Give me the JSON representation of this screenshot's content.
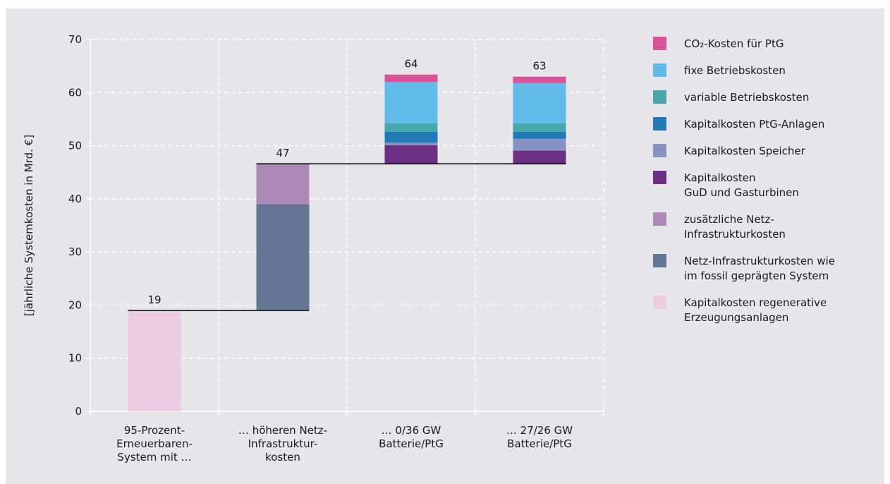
{
  "chart_data": {
    "type": "bar",
    "subtype": "stacked-waterfall",
    "ylabel": "[jährliche Systemkosten in Mrd. €]",
    "ylim": [
      0,
      70
    ],
    "yticks": [
      0,
      10,
      20,
      30,
      40,
      50,
      60,
      70
    ],
    "grid": true,
    "legend_position": "right",
    "categories": [
      [
        "95-Prozent-",
        "Erneuerbaren-",
        "System mit …"
      ],
      [
        "… höheren Netz-",
        "Infrastruktur-",
        "kosten"
      ],
      [
        "… 0/36 GW",
        "Batterie/PtG"
      ],
      [
        "… 27/26 GW",
        "Batterie/PtG"
      ]
    ],
    "totals": [
      "19",
      "47",
      "64",
      "63"
    ],
    "series": [
      {
        "name": [
          "Kapitalkosten regenerative",
          "Erzeugungsanlagen"
        ],
        "color": "#edcce2",
        "values": [
          19,
          0,
          0,
          0
        ]
      },
      {
        "name": [
          "Netz-Infrastrukturkosten wie",
          "im fossil geprägten System"
        ],
        "color": "#637693",
        "values": [
          0,
          20,
          0,
          0
        ]
      },
      {
        "name": [
          "zusätzliche Netz-",
          "Infrastrukturkosten"
        ],
        "color": "#ae88b6",
        "values": [
          0,
          7.6,
          0,
          0
        ]
      },
      {
        "name": [
          "Kapitalkosten",
          "GuD und Gasturbinen"
        ],
        "color": "#6d2f84",
        "values": [
          0,
          0,
          3.5,
          2.5
        ]
      },
      {
        "name": [
          "Kapitalkosten Speicher"
        ],
        "color": "#8592c3",
        "values": [
          0,
          0,
          0.5,
          2.2
        ]
      },
      {
        "name": [
          "Kapitalkosten PtG-Anlagen"
        ],
        "color": "#2179b6",
        "values": [
          0,
          0,
          2.0,
          1.3
        ]
      },
      {
        "name": [
          "variable Betriebskosten"
        ],
        "color": "#46a6aa",
        "values": [
          0,
          0,
          1.6,
          1.6
        ]
      },
      {
        "name": [
          "fixe Betriebskosten"
        ],
        "color": "#62bae8",
        "values": [
          0,
          0,
          7.8,
          7.6
        ]
      },
      {
        "name": [
          "CO₂-Kosten für PtG"
        ],
        "color": "#d9529a",
        "values": [
          0,
          0,
          1.4,
          1.2
        ]
      }
    ],
    "bar_bases": [
      0,
      19,
      46.6,
      46.6
    ],
    "connectors": [
      {
        "y": 19,
        "from": 0,
        "to": 1
      },
      {
        "y": 46.6,
        "from": 1,
        "to": 3
      }
    ]
  }
}
